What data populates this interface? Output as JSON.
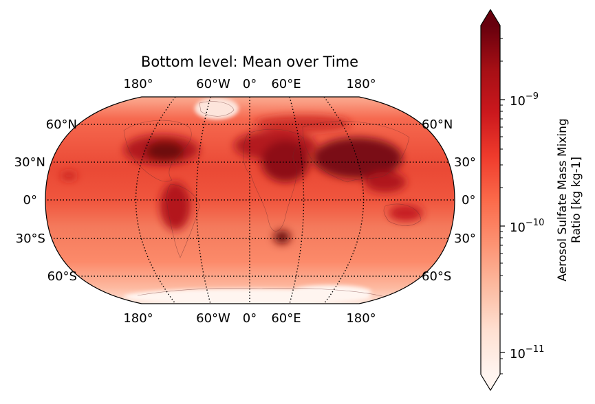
{
  "title": "Bottom level: Mean over Time",
  "top_lon_labels": [
    "180°",
    "60°W",
    "0°",
    "60°E",
    "180°"
  ],
  "bottom_lon_labels": [
    "180°",
    "60°W",
    "0°",
    "60°E",
    "180°"
  ],
  "left_lat_labels": [
    "60°N",
    "30°N",
    "0°",
    "30°S",
    "60°S"
  ],
  "right_lat_labels": [
    "60°N",
    "30°",
    "0°",
    "30°",
    "60°S"
  ],
  "colorbar": {
    "label_line1": "Aerosol Sulfate Mass Mixing",
    "label_line2": "Ratio [kg kg-1]",
    "ticks": [
      {
        "base": "10",
        "exp": "−9",
        "value": 1e-09
      },
      {
        "base": "10",
        "exp": "−10",
        "value": 1e-10
      },
      {
        "base": "10",
        "exp": "−11",
        "value": 1e-11
      }
    ],
    "colormap": "Reds",
    "colors": [
      "#fff5f0",
      "#fee0d2",
      "#fcbba1",
      "#fc9272",
      "#fb6a4a",
      "#ef3b2c",
      "#cb181d",
      "#a50f15",
      "#67000d"
    ]
  },
  "map": {
    "projection": "Robinson",
    "graticule_lat": [
      -60,
      -30,
      0,
      30,
      60
    ],
    "graticule_lon": [
      -120,
      -60,
      0,
      60,
      120
    ]
  }
}
